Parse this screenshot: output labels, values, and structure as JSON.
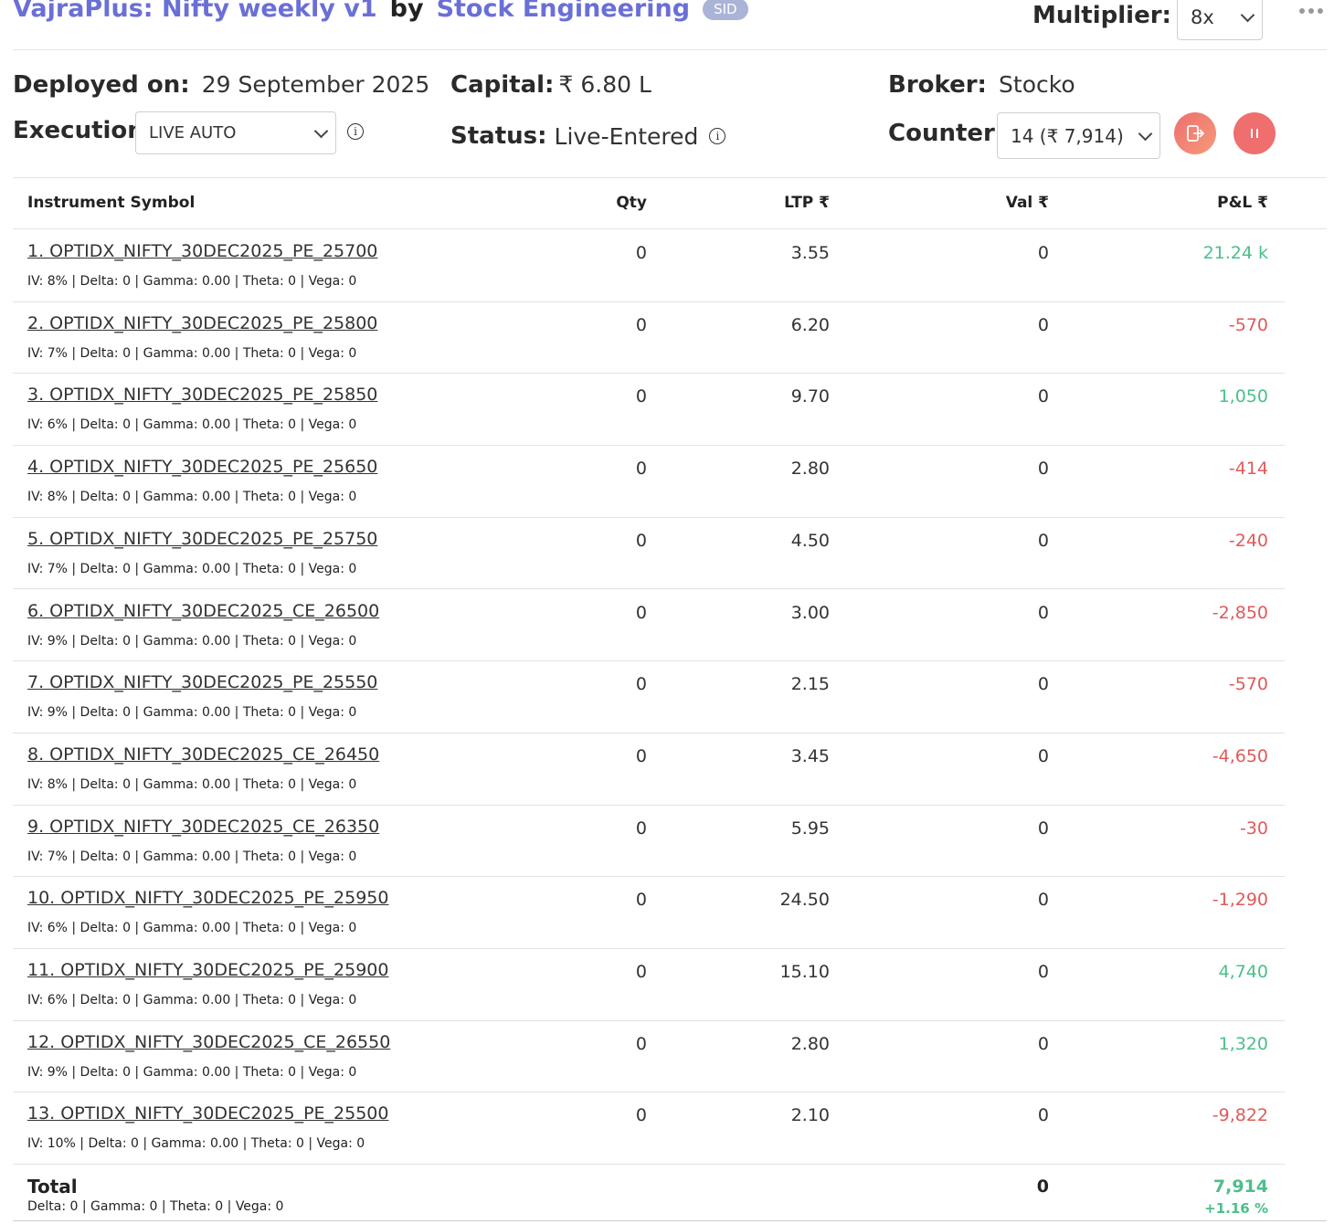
{
  "header": {
    "strategy_name": "VajraPlus: Nifty weekly v1",
    "by": "by",
    "author": "Stock Engineering",
    "badge": "SID",
    "multiplier_label": "Multiplier:",
    "multiplier_value": "8x",
    "more_icon": "more-horizontal-icon"
  },
  "info": {
    "deployed_label": "Deployed on:",
    "deployed_value": "29 September 2025",
    "capital_label": "Capital:",
    "capital_value": "₹ 6.80 L",
    "broker_label": "Broker:",
    "broker_value": "Stocko",
    "execution_label": "Execution:",
    "execution_value": "LIVE AUTO",
    "status_label": "Status:",
    "status_value": "Live-Entered",
    "counter_label": "Counter:",
    "counter_value": "14 (₹ 7,914)",
    "exit_icon": "exit-icon",
    "pause_icon": "pause-icon"
  },
  "table": {
    "headers": {
      "symbol": "Instrument Symbol",
      "qty": "Qty",
      "ltp": "LTP ₹",
      "val": "Val ₹",
      "pnl": "P&L ₹"
    },
    "rows": [
      {
        "symbol": "1. OPTIDX_NIFTY_30DEC2025_PE_25700",
        "greeks": "IV: 8% | Delta: 0 | Gamma: 0.00 | Theta: 0 | Vega: 0",
        "qty": "0",
        "ltp": "3.55",
        "val": "0",
        "pnl": "21.24 k",
        "pnl_sign": "pos"
      },
      {
        "symbol": "2. OPTIDX_NIFTY_30DEC2025_PE_25800",
        "greeks": "IV: 7% | Delta: 0 | Gamma: 0.00 | Theta: 0 | Vega: 0",
        "qty": "0",
        "ltp": "6.20",
        "val": "0",
        "pnl": "-570",
        "pnl_sign": "neg"
      },
      {
        "symbol": "3. OPTIDX_NIFTY_30DEC2025_PE_25850",
        "greeks": "IV: 6% | Delta: 0 | Gamma: 0.00 | Theta: 0 | Vega: 0",
        "qty": "0",
        "ltp": "9.70",
        "val": "0",
        "pnl": "1,050",
        "pnl_sign": "pos"
      },
      {
        "symbol": "4. OPTIDX_NIFTY_30DEC2025_PE_25650",
        "greeks": "IV: 8% | Delta: 0 | Gamma: 0.00 | Theta: 0 | Vega: 0",
        "qty": "0",
        "ltp": "2.80",
        "val": "0",
        "pnl": "-414",
        "pnl_sign": "neg"
      },
      {
        "symbol": "5. OPTIDX_NIFTY_30DEC2025_PE_25750",
        "greeks": "IV: 7% | Delta: 0 | Gamma: 0.00 | Theta: 0 | Vega: 0",
        "qty": "0",
        "ltp": "4.50",
        "val": "0",
        "pnl": "-240",
        "pnl_sign": "neg"
      },
      {
        "symbol": "6. OPTIDX_NIFTY_30DEC2025_CE_26500",
        "greeks": "IV: 9% | Delta: 0 | Gamma: 0.00 | Theta: 0 | Vega: 0",
        "qty": "0",
        "ltp": "3.00",
        "val": "0",
        "pnl": "-2,850",
        "pnl_sign": "neg"
      },
      {
        "symbol": "7. OPTIDX_NIFTY_30DEC2025_PE_25550",
        "greeks": "IV: 9% | Delta: 0 | Gamma: 0.00 | Theta: 0 | Vega: 0",
        "qty": "0",
        "ltp": "2.15",
        "val": "0",
        "pnl": "-570",
        "pnl_sign": "neg"
      },
      {
        "symbol": "8. OPTIDX_NIFTY_30DEC2025_CE_26450",
        "greeks": "IV: 8% | Delta: 0 | Gamma: 0.00 | Theta: 0 | Vega: 0",
        "qty": "0",
        "ltp": "3.45",
        "val": "0",
        "pnl": "-4,650",
        "pnl_sign": "neg"
      },
      {
        "symbol": "9. OPTIDX_NIFTY_30DEC2025_CE_26350",
        "greeks": "IV: 7% | Delta: 0 | Gamma: 0.00 | Theta: 0 | Vega: 0",
        "qty": "0",
        "ltp": "5.95",
        "val": "0",
        "pnl": "-30",
        "pnl_sign": "neg"
      },
      {
        "symbol": "10. OPTIDX_NIFTY_30DEC2025_PE_25950",
        "greeks": "IV: 6% | Delta: 0 | Gamma: 0.00 | Theta: 0 | Vega: 0",
        "qty": "0",
        "ltp": "24.50",
        "val": "0",
        "pnl": "-1,290",
        "pnl_sign": "neg"
      },
      {
        "symbol": "11. OPTIDX_NIFTY_30DEC2025_PE_25900",
        "greeks": "IV: 6% | Delta: 0 | Gamma: 0.00 | Theta: 0 | Vega: 0",
        "qty": "0",
        "ltp": "15.10",
        "val": "0",
        "pnl": "4,740",
        "pnl_sign": "pos"
      },
      {
        "symbol": "12. OPTIDX_NIFTY_30DEC2025_CE_26550",
        "greeks": "IV: 9% | Delta: 0 | Gamma: 0.00 | Theta: 0 | Vega: 0",
        "qty": "0",
        "ltp": "2.80",
        "val": "0",
        "pnl": "1,320",
        "pnl_sign": "pos"
      },
      {
        "symbol": "13. OPTIDX_NIFTY_30DEC2025_PE_25500",
        "greeks": "IV: 10% | Delta: 0 | Gamma: 0.00 | Theta: 0 | Vega: 0",
        "qty": "0",
        "ltp": "2.10",
        "val": "0",
        "pnl": "-9,822",
        "pnl_sign": "neg"
      }
    ],
    "total": {
      "label": "Total",
      "greeks": "Delta: 0 | Gamma: 0  | Theta: 0 | Vega: 0",
      "val": "0",
      "pnl": "7,914",
      "pnl_pct": "+1.16 %"
    }
  },
  "colors": {
    "accent": "#6a6fd6",
    "positive": "#4cbf8a",
    "negative": "#e05a5a",
    "button": "#ef6e6e"
  }
}
